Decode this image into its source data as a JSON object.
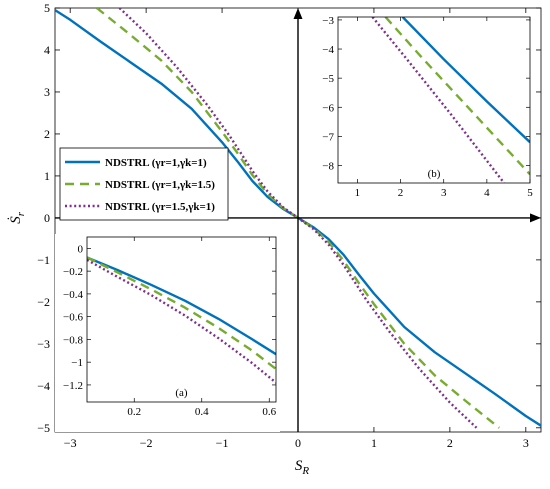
{
  "chart_data": [
    {
      "type": "line",
      "xlabel": "S_R",
      "ylabel": "Ṡ_r",
      "xlim": [
        -3.2,
        3.2
      ],
      "ylim": [
        -5.1,
        5.0
      ],
      "xticks": [
        -3,
        -2,
        -1,
        0,
        1,
        2,
        3
      ],
      "yticks": [
        -5,
        -4,
        -3,
        -2,
        -1,
        0,
        1,
        2,
        3,
        4,
        5
      ],
      "grid": false,
      "legend_position": "center-left",
      "legend": [
        "NDSTRL (γr=1,γk=1)",
        "NDSTRL (γr=1,γk=1.5)",
        "NDSTRL (γr=1.5,γk=1)"
      ],
      "series": [
        {
          "name": "NDSTRL (γr=1,γk=1)",
          "style": "solid",
          "color": "#0072BD",
          "x": [
            -3.2,
            -3.0,
            -2.6,
            -2.2,
            -1.8,
            -1.4,
            -1.0,
            -0.8,
            -0.6,
            -0.4,
            -0.2,
            0,
            0.2,
            0.4,
            0.6,
            0.8,
            1.0,
            1.4,
            1.8,
            2.2,
            2.6,
            3.0,
            3.2
          ],
          "y": [
            4.95,
            4.72,
            4.2,
            3.7,
            3.2,
            2.6,
            1.8,
            1.35,
            0.88,
            0.5,
            0.22,
            0,
            -0.22,
            -0.5,
            -0.88,
            -1.35,
            -1.8,
            -2.6,
            -3.2,
            -3.7,
            -4.2,
            -4.72,
            -4.95
          ]
        },
        {
          "name": "NDSTRL (γr=1,γk=1.5)",
          "style": "dashed",
          "color": "#77AC30",
          "x": [
            -2.65,
            -2.2,
            -1.8,
            -1.4,
            -1.0,
            -0.8,
            -0.6,
            -0.4,
            -0.2,
            0,
            0.2,
            0.4,
            0.6,
            0.8,
            1.0,
            1.4,
            1.8,
            2.2,
            2.65
          ],
          "y": [
            5.0,
            4.35,
            3.75,
            3.0,
            2.05,
            1.55,
            1.02,
            0.57,
            0.24,
            0,
            -0.24,
            -0.57,
            -1.02,
            -1.55,
            -2.05,
            -3.0,
            -3.75,
            -4.35,
            -5.0
          ]
        },
        {
          "name": "NDSTRL (γr=1.5,γk=1)",
          "style": "dotted",
          "color": "#7E2F8E",
          "x": [
            -2.35,
            -2.0,
            -1.6,
            -1.2,
            -0.9,
            -0.6,
            -0.4,
            -0.2,
            0,
            0.2,
            0.4,
            0.6,
            0.9,
            1.2,
            1.6,
            2.0,
            2.35
          ],
          "y": [
            5.0,
            4.4,
            3.6,
            2.7,
            1.95,
            1.12,
            0.63,
            0.26,
            0,
            -0.26,
            -0.63,
            -1.12,
            -1.95,
            -2.7,
            -3.6,
            -4.4,
            -5.0
          ]
        }
      ]
    },
    {
      "type": "line",
      "caption": "(b)",
      "xlim": [
        0.55,
        5.0
      ],
      "ylim": [
        -8.6,
        -2.9
      ],
      "xticks": [
        1,
        2,
        3,
        4,
        5
      ],
      "yticks": [
        -3,
        -4,
        -5,
        -6,
        -7,
        -8
      ],
      "series": [
        {
          "name": "NDSTRL (γr=1,γk=1)",
          "style": "solid",
          "color": "#0072BD",
          "x": [
            2.05,
            3.0,
            4.0,
            5.0
          ],
          "y": [
            -2.9,
            -4.35,
            -5.8,
            -7.2
          ]
        },
        {
          "name": "NDSTRL (γr=1,γk=1.5)",
          "style": "dashed",
          "color": "#77AC30",
          "x": [
            1.65,
            2.5,
            3.5,
            5.0
          ],
          "y": [
            -2.9,
            -4.3,
            -5.9,
            -8.3
          ]
        },
        {
          "name": "NDSTRL (γr=1.5,γk=1)",
          "style": "dotted",
          "color": "#7E2F8E",
          "x": [
            1.35,
            2.2,
            3.2,
            4.4
          ],
          "y": [
            -2.9,
            -4.45,
            -6.3,
            -8.6
          ]
        }
      ]
    },
    {
      "type": "line",
      "caption": "(a)",
      "xlim": [
        0.06,
        0.62
      ],
      "ylim": [
        -1.35,
        0.1
      ],
      "xticks": [
        0.2,
        0.4,
        0.6
      ],
      "yticks": [
        0,
        -0.2,
        -0.4,
        -0.6,
        -0.8,
        -1,
        -1.2
      ],
      "series": [
        {
          "name": "NDSTRL (γr=1,γk=1)",
          "style": "solid",
          "color": "#0072BD",
          "x": [
            0.06,
            0.15,
            0.25,
            0.35,
            0.45,
            0.55,
            0.62
          ],
          "y": [
            -0.08,
            -0.19,
            -0.32,
            -0.46,
            -0.62,
            -0.8,
            -0.93
          ]
        },
        {
          "name": "NDSTRL (γr=1,γk=1.5)",
          "style": "dashed",
          "color": "#77AC30",
          "x": [
            0.06,
            0.15,
            0.25,
            0.35,
            0.45,
            0.55,
            0.62
          ],
          "y": [
            -0.08,
            -0.21,
            -0.36,
            -0.52,
            -0.7,
            -0.9,
            -1.06
          ]
        },
        {
          "name": "NDSTRL (γr=1.5,γk=1)",
          "style": "dotted",
          "color": "#7E2F8E",
          "x": [
            0.06,
            0.15,
            0.25,
            0.35,
            0.45,
            0.55,
            0.62
          ],
          "y": [
            -0.1,
            -0.25,
            -0.41,
            -0.59,
            -0.79,
            -1.01,
            -1.18
          ]
        }
      ]
    }
  ]
}
